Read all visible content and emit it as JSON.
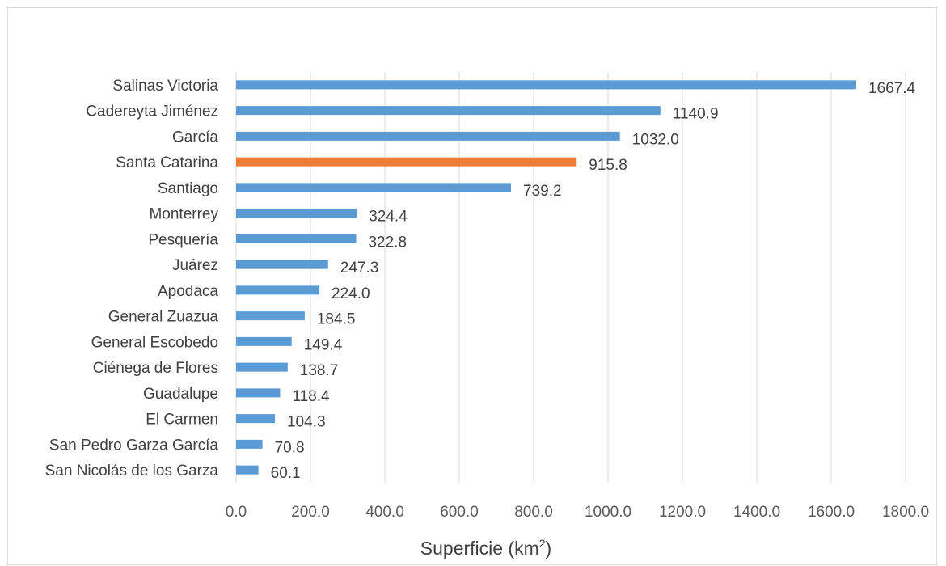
{
  "chart_data": {
    "type": "bar",
    "orientation": "horizontal",
    "categories": [
      "Salinas Victoria",
      "Cadereyta Jiménez",
      "García",
      "Santa Catarina",
      "Santiago",
      "Monterrey",
      "Pesquería",
      "Juárez",
      "Apodaca",
      "General Zuazua",
      "General Escobedo",
      "Ciénega de Flores",
      "Guadalupe",
      "El Carmen",
      "San Pedro Garza García",
      "San Nicolás de los Garza"
    ],
    "values": [
      1667.4,
      1140.9,
      1032.0,
      915.8,
      739.2,
      324.4,
      322.8,
      247.3,
      224.0,
      184.5,
      149.4,
      138.7,
      118.4,
      104.3,
      70.8,
      60.1
    ],
    "value_labels": [
      "1667.4",
      "1140.9",
      "1032.0",
      "915.8",
      "739.2",
      "324.4",
      "322.8",
      "247.3",
      "224.0",
      "184.5",
      "149.4",
      "138.7",
      "118.4",
      "104.3",
      "70.8",
      "60.1"
    ],
    "highlight_category": "Santa Catarina",
    "xlabel": "Superficie (km",
    "xlabel_superscript": "2",
    "xlabel_suffix": ")",
    "xlim": [
      0,
      1800
    ],
    "ticks": [
      "0.0",
      "200.0",
      "400.0",
      "600.0",
      "800.0",
      "1000.0",
      "1200.0",
      "1400.0",
      "1600.0",
      "1800.0"
    ],
    "grid": "vertical",
    "legend": "none",
    "colors": {
      "bar": "#5b9bd5",
      "highlight": "#ed7d31",
      "grid": "#d9d9d9"
    }
  }
}
